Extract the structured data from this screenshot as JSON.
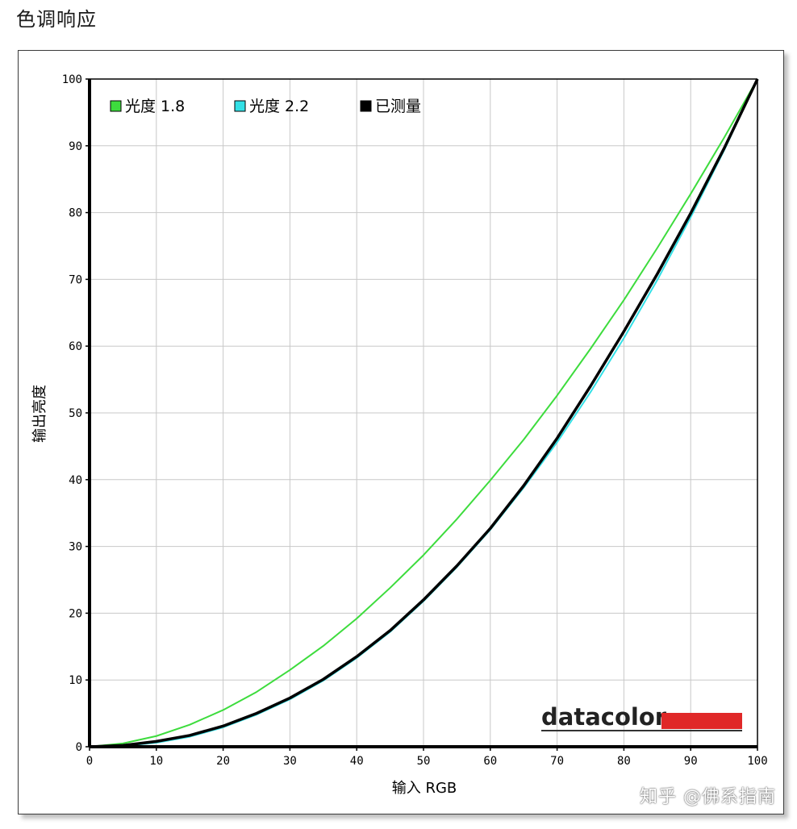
{
  "page": {
    "title": "色调响应",
    "watermark": "知乎 @佛系指南",
    "logo_text": "datacolor"
  },
  "colors": {
    "gamma18": "#3ddc3d",
    "gamma22": "#33e0e6",
    "measured": "#000000",
    "logo_bar": "#e02828",
    "grid": "#c8c8c8"
  },
  "chart_data": {
    "type": "line",
    "title": "",
    "xlabel": "输入 RGB",
    "ylabel": "输出亮度",
    "xlim": [
      0,
      100
    ],
    "ylim": [
      0,
      100
    ],
    "xticks": [
      "0",
      "10",
      "20",
      "30",
      "40",
      "50",
      "60",
      "70",
      "80",
      "90",
      "100"
    ],
    "yticks": [
      "0",
      "10",
      "20",
      "30",
      "40",
      "50",
      "60",
      "70",
      "80",
      "90",
      "100"
    ],
    "grid": true,
    "legend_position": "top-left",
    "x": [
      0,
      5,
      10,
      15,
      20,
      25,
      30,
      35,
      40,
      45,
      50,
      55,
      60,
      65,
      70,
      75,
      80,
      85,
      90,
      95,
      100
    ],
    "series": [
      {
        "name": "光度 1.8",
        "color": "#3ddc3d",
        "values": [
          0,
          0.5,
          1.6,
          3.3,
          5.5,
          8.2,
          11.5,
          15.1,
          19.2,
          23.8,
          28.7,
          34.1,
          39.9,
          46.0,
          52.6,
          59.6,
          66.9,
          74.7,
          82.8,
          91.2,
          100
        ]
      },
      {
        "name": "光度 2.2",
        "color": "#33e0e6",
        "values": [
          0,
          0.1,
          0.6,
          1.5,
          2.9,
          4.8,
          7.1,
          9.9,
          13.3,
          17.2,
          21.8,
          26.9,
          32.5,
          38.8,
          45.6,
          53.1,
          61.2,
          69.9,
          79.3,
          89.3,
          100
        ]
      },
      {
        "name": "已测量",
        "color": "#000000",
        "values": [
          0,
          0.2,
          0.8,
          1.7,
          3.1,
          5.0,
          7.3,
          10.1,
          13.5,
          17.4,
          22.0,
          27.1,
          32.7,
          39.1,
          46.2,
          54.0,
          62.2,
          70.8,
          79.9,
          89.6,
          100
        ]
      }
    ]
  }
}
